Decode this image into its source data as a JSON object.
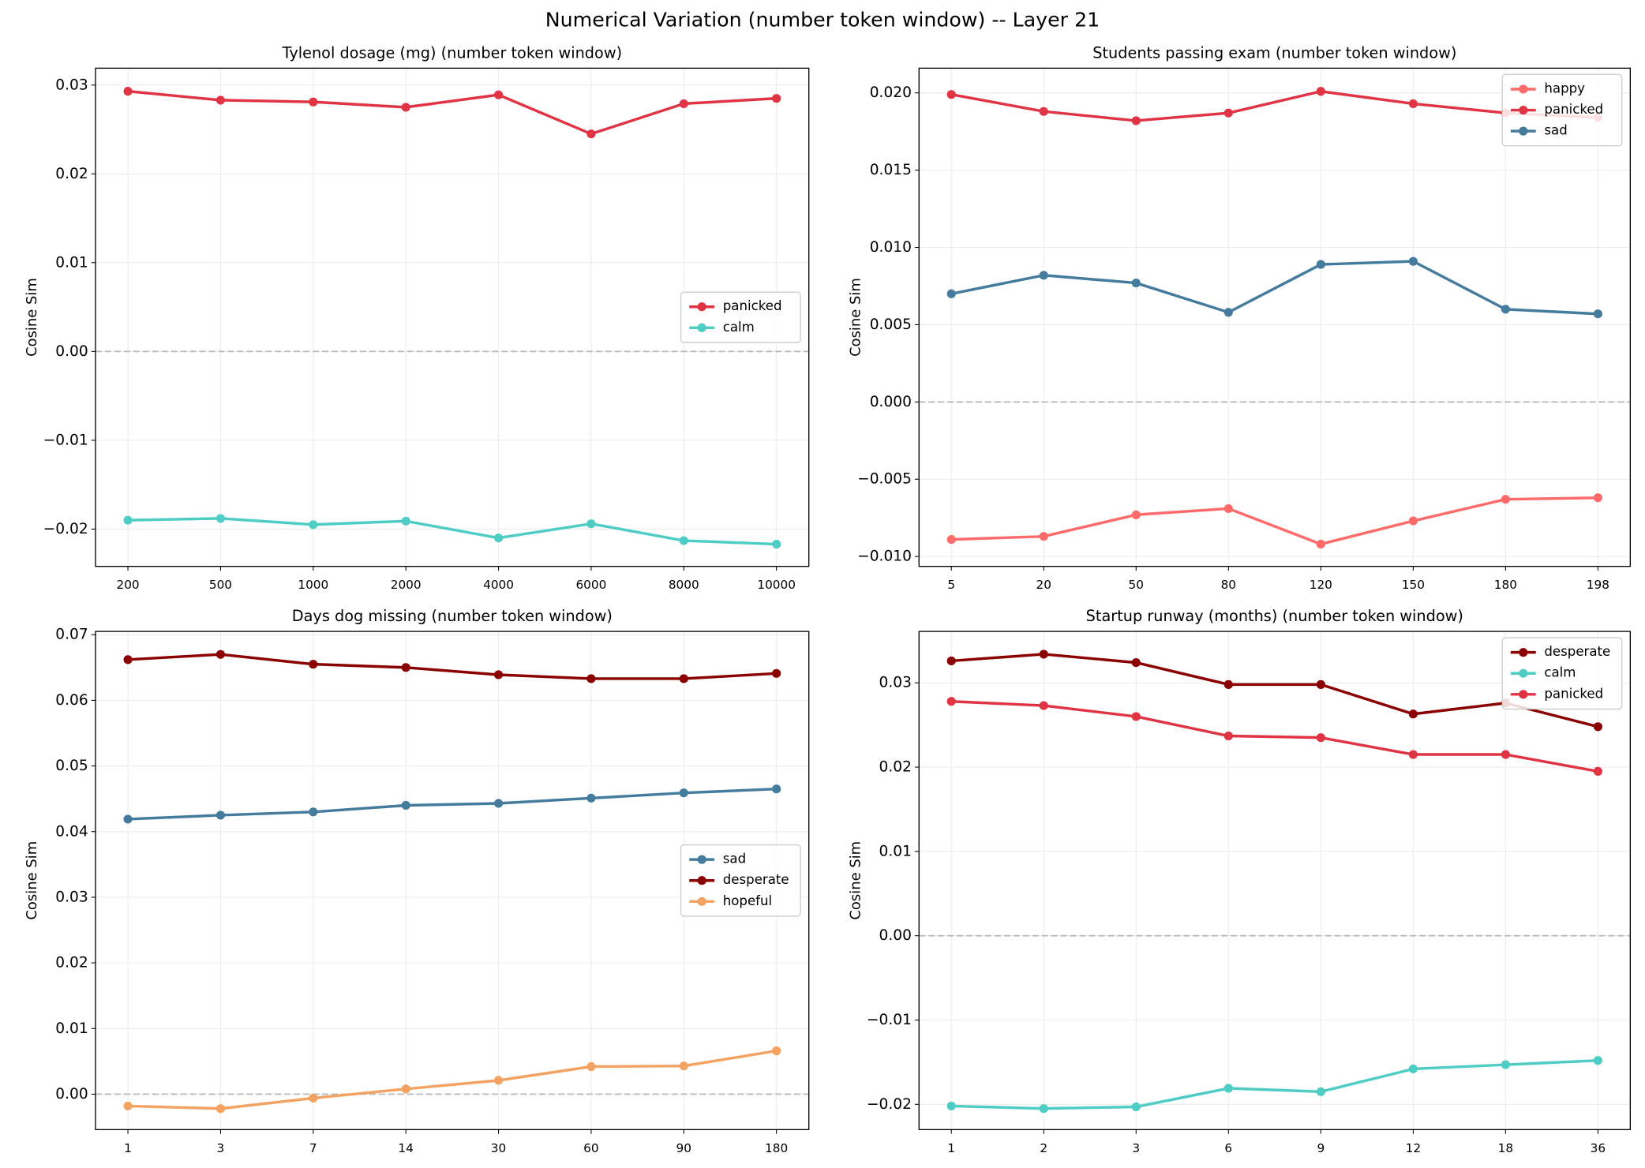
{
  "title": "Numerical Variation (number token window) -- Layer 21",
  "chart_data": [
    {
      "type": "line",
      "title": "Tylenol dosage (mg) (number token window)",
      "ylabel": "Cosine Sim",
      "categories": [
        "200",
        "500",
        "1000",
        "2000",
        "4000",
        "6000",
        "8000",
        "10000"
      ],
      "series": [
        {
          "name": "panicked",
          "color": "#e03444",
          "values": [
            0.0293,
            0.0283,
            0.0281,
            0.0275,
            0.0289,
            0.0245,
            0.0279,
            0.0285
          ]
        },
        {
          "name": "calm",
          "color": "#4ecdc4",
          "values": [
            -0.019,
            -0.0188,
            -0.0195,
            -0.0191,
            -0.021,
            -0.0194,
            -0.0213,
            -0.0217
          ]
        }
      ],
      "ylim": [
        -0.0242,
        0.0319
      ],
      "yticks": [
        {
          "value": -0.02,
          "label": "−0.02"
        },
        {
          "value": -0.01,
          "label": "−0.01"
        },
        {
          "value": 0,
          "label": "0.00"
        },
        0.01,
        0.02,
        0.03
      ],
      "grid": true,
      "zero_line": true,
      "legend": "center right"
    },
    {
      "type": "line",
      "title": "Students passing exam (number token window)",
      "ylabel": "Cosine Sim",
      "categories": [
        "5",
        "20",
        "50",
        "80",
        "120",
        "150",
        "180",
        "198"
      ],
      "series": [
        {
          "name": "happy",
          "color": "#ff6b6b",
          "values": [
            -0.0089,
            -0.0087,
            -0.0073,
            -0.0069,
            -0.0092,
            -0.0077,
            -0.0063,
            -0.0062
          ]
        },
        {
          "name": "panicked",
          "color": "#e03444",
          "values": [
            0.0199,
            0.0188,
            0.0182,
            0.0187,
            0.0201,
            0.0193,
            0.0187,
            0.0184
          ]
        },
        {
          "name": "sad",
          "color": "#457b9d",
          "values": [
            0.007,
            0.0082,
            0.0077,
            0.0058,
            0.0089,
            0.0091,
            0.006,
            0.0057
          ]
        }
      ],
      "ylim": [
        -0.01064,
        0.0216
      ],
      "yticks": [
        {
          "value": -0.01,
          "label": "−0.010"
        },
        {
          "value": -0.005,
          "label": "−0.005"
        },
        {
          "value": 0,
          "label": "0.000"
        },
        0.005,
        {
          "value": 0.01,
          "label": "0.010"
        },
        0.015,
        {
          "value": 0.02,
          "label": "0.020"
        }
      ],
      "grid": true,
      "zero_line": true,
      "legend": "upper right"
    },
    {
      "type": "line",
      "title": "Days dog missing (number token window)",
      "ylabel": "Cosine Sim",
      "categories": [
        "1",
        "3",
        "7",
        "14",
        "30",
        "60",
        "90",
        "180"
      ],
      "series": [
        {
          "name": "sad",
          "color": "#457b9d",
          "values": [
            0.0419,
            0.0425,
            0.043,
            0.044,
            0.0443,
            0.0451,
            0.0459,
            0.0465
          ]
        },
        {
          "name": "desperate",
          "color": "#8b0000",
          "values": [
            0.0662,
            0.067,
            0.0655,
            0.065,
            0.0639,
            0.0633,
            0.0633,
            0.0641
          ]
        },
        {
          "name": "hopeful",
          "color": "#f4a261",
          "values": [
            -0.0018,
            -0.0022,
            -0.0006,
            0.0008,
            0.0021,
            0.0042,
            0.0043,
            0.0066
          ]
        }
      ],
      "ylim": [
        -0.0054,
        0.0705
      ],
      "yticks": [
        {
          "value": 0,
          "label": "0.00"
        },
        0.01,
        0.02,
        0.03,
        0.04,
        0.05,
        0.06,
        0.07
      ],
      "grid": true,
      "zero_line": true,
      "legend": "center right"
    },
    {
      "type": "line",
      "title": "Startup runway (months) (number token window)",
      "ylabel": "Cosine Sim",
      "categories": [
        "1",
        "2",
        "3",
        "6",
        "9",
        "12",
        "18",
        "36"
      ],
      "series": [
        {
          "name": "desperate",
          "color": "#8b0000",
          "values": [
            0.0326,
            0.0334,
            0.0324,
            0.0298,
            0.0298,
            0.0263,
            0.0276,
            0.0248
          ]
        },
        {
          "name": "calm",
          "color": "#4ecdc4",
          "values": [
            -0.0202,
            -0.0205,
            -0.0203,
            -0.0181,
            -0.0185,
            -0.0158,
            -0.0153,
            -0.0148
          ]
        },
        {
          "name": "panicked",
          "color": "#e03444",
          "values": [
            0.0278,
            0.0273,
            0.026,
            0.0237,
            0.0235,
            0.0215,
            0.0215,
            0.0195
          ]
        }
      ],
      "ylim": [
        -0.023,
        0.0361
      ],
      "yticks": [
        {
          "value": -0.02,
          "label": "−0.02"
        },
        {
          "value": -0.01,
          "label": "−0.01"
        },
        {
          "value": 0,
          "label": "0.00"
        },
        0.01,
        0.02,
        0.03
      ],
      "grid": true,
      "zero_line": true,
      "legend": "upper right"
    }
  ]
}
